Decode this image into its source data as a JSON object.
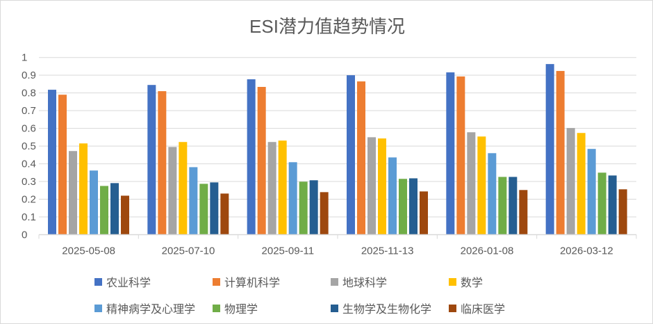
{
  "chart_data": {
    "type": "bar",
    "title": "ESI潜力值趋势情况",
    "categories": [
      "2025-05-08",
      "2025-07-10",
      "2025-09-11",
      "2025-11-13",
      "2026-01-08",
      "2026-03-12"
    ],
    "ylim": [
      0,
      1
    ],
    "yticks": [
      "0",
      "0.1",
      "0.2",
      "0.3",
      "0.4",
      "0.5",
      "0.6",
      "0.7",
      "0.8",
      "0.9",
      "1"
    ],
    "grid": true,
    "legend_position": "bottom",
    "series": [
      {
        "name": "农业科学",
        "color": "#4472C4",
        "values": [
          0.818,
          0.845,
          0.877,
          0.9,
          0.916,
          0.963
        ]
      },
      {
        "name": "计算机科学",
        "color": "#ED7D31",
        "values": [
          0.79,
          0.81,
          0.834,
          0.865,
          0.893,
          0.924
        ]
      },
      {
        "name": "地球科学",
        "color": "#A5A5A5",
        "values": [
          0.472,
          0.495,
          0.523,
          0.55,
          0.578,
          0.602
        ]
      },
      {
        "name": "数学",
        "color": "#FFC000",
        "values": [
          0.515,
          0.523,
          0.531,
          0.543,
          0.554,
          0.574
        ]
      },
      {
        "name": "精神病学及心理学",
        "color": "#5B9BD5",
        "values": [
          0.362,
          0.381,
          0.409,
          0.436,
          0.46,
          0.484
        ]
      },
      {
        "name": "物理学",
        "color": "#70AD47",
        "values": [
          0.275,
          0.287,
          0.299,
          0.315,
          0.326,
          0.35
        ]
      },
      {
        "name": "生物学及生物化学",
        "color": "#255E91",
        "values": [
          0.291,
          0.295,
          0.307,
          0.318,
          0.326,
          0.334
        ]
      },
      {
        "name": "临床医学",
        "color": "#9E480E",
        "values": [
          0.22,
          0.232,
          0.24,
          0.244,
          0.252,
          0.256
        ]
      }
    ]
  }
}
